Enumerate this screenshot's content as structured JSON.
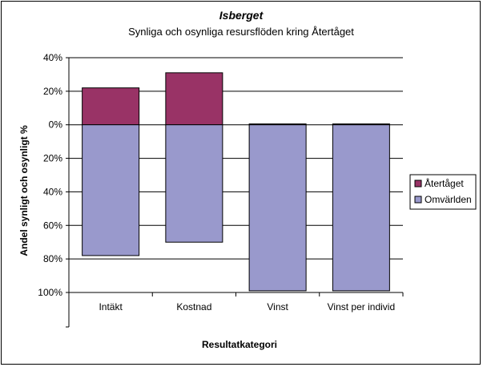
{
  "chart_data": {
    "type": "bar",
    "stacked": true,
    "title": "Isberget",
    "subtitle": "Synliga och osynliga resursflöden kring Återtåget",
    "xlabel": "Resultatkategori",
    "ylabel": "Andel synligt och osynligt %",
    "categories": [
      "Intäkt",
      "Kostnad",
      "Vinst",
      "Vinst per individ"
    ],
    "y_tick_labels": [
      "40%",
      "20%",
      "0%",
      "20%",
      "40%",
      "60%",
      "80%",
      "100%"
    ],
    "y_tick_values": [
      40,
      20,
      0,
      -20,
      -40,
      -60,
      -80,
      -100
    ],
    "ylim": [
      -100,
      40
    ],
    "grid": true,
    "legend_position": "right",
    "series": [
      {
        "name": "Återtåget",
        "values": [
          22,
          31,
          0.5,
          0.5
        ],
        "color": "#993366"
      },
      {
        "name": "Omvärlden",
        "values": [
          -78,
          -70,
          -99,
          -99
        ],
        "color": "#9999CC"
      }
    ]
  }
}
